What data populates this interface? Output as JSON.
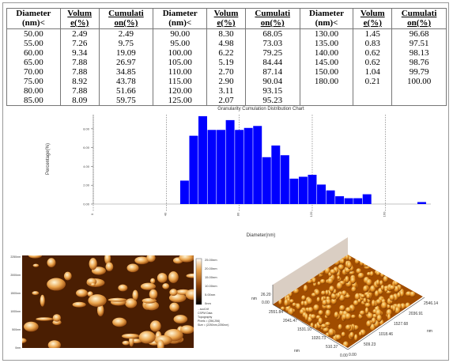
{
  "table": {
    "header": [
      [
        "Diameter",
        "(nm)<"
      ],
      [
        "Volum",
        "e(%)"
      ],
      [
        "Cumulati",
        "on(%)"
      ],
      [
        "Diameter",
        "(nm)<"
      ],
      [
        "Volum",
        "e(%)"
      ],
      [
        "Cumulati",
        "on(%)"
      ],
      [
        "Diameter",
        "(nm)<"
      ],
      [
        "Volum",
        "e(%)"
      ],
      [
        "Cumulati",
        "on(%)"
      ]
    ],
    "rows": [
      [
        "50.00",
        "2.49",
        "2.49",
        "90.00",
        "8.30",
        "68.05",
        "130.00",
        "1.45",
        "96.68"
      ],
      [
        "55.00",
        "7.26",
        "9.75",
        "95.00",
        "4.98",
        "73.03",
        "135.00",
        "0.83",
        "97.51"
      ],
      [
        "60.00",
        "9.34",
        "19.09",
        "100.00",
        "6.22",
        "79.25",
        "140.00",
        "0.62",
        "98.13"
      ],
      [
        "65.00",
        "7.88",
        "26.97",
        "105.00",
        "5.19",
        "84.44",
        "145.00",
        "0.62",
        "98.76"
      ],
      [
        "70.00",
        "7.88",
        "34.85",
        "110.00",
        "2.70",
        "87.14",
        "150.00",
        "1.04",
        "99.79"
      ],
      [
        "75.00",
        "8.92",
        "43.78",
        "115.00",
        "2.90",
        "90.04",
        "180.00",
        "0.21",
        "100.00"
      ],
      [
        "80.00",
        "7.88",
        "51.66",
        "120.00",
        "3.11",
        "93.15"
      ],
      [
        "85.00",
        "8.09",
        "59.75",
        "125.00",
        "2.07",
        "95.23"
      ]
    ]
  },
  "chart_data": {
    "type": "bar",
    "title": "Granularity Cumulation Distribution  Chart",
    "x_label": "Diameter(nm)",
    "y_label": "Percentage(%)",
    "x": [
      50,
      55,
      60,
      65,
      70,
      75,
      80,
      85,
      90,
      95,
      100,
      105,
      110,
      115,
      120,
      125,
      130,
      135,
      140,
      145,
      150,
      180
    ],
    "values": [
      2.49,
      7.26,
      9.34,
      7.88,
      7.88,
      8.92,
      7.88,
      8.09,
      8.3,
      4.98,
      6.22,
      5.19,
      2.7,
      2.9,
      3.11,
      2.07,
      1.45,
      0.83,
      0.62,
      0.62,
      1.04,
      0.21
    ],
    "color": "#0000ff",
    "xlim": [
      0,
      185
    ],
    "xticks": [
      0,
      40,
      80,
      120,
      160
    ],
    "ylim": [
      0,
      9.5
    ],
    "yticks": [
      {
        "value": 0,
        "label": "0.00"
      },
      {
        "value": 2,
        "label": "2.00"
      },
      {
        "value": 4,
        "label": "4.00"
      },
      {
        "value": 6,
        "label": "6.00"
      },
      {
        "value": 8,
        "label": "8.00"
      }
    ],
    "grid": true
  },
  "afm_2d": {
    "colorbar_labels": [
      "25.00nm",
      "20.00nm",
      "15.00nm",
      "10.00nm",
      "5.00nm",
      "0nm"
    ],
    "info": [
      "...sco0.tif",
      "CSPM Data",
      "Topography",
      "Pixels = (256,256)",
      "Size = (2250nm,2250nm)"
    ],
    "y_labels": [
      "2250nm",
      "2000nm",
      "1500nm",
      "1000nm",
      "500nm",
      "0nm"
    ]
  },
  "afm_3d": {
    "z_labels": [
      "26.20",
      "0.00"
    ],
    "z_unit": "nm",
    "y_labels": [
      "2551.84",
      "2041.47",
      "1531.10",
      "1020.73",
      "510.37",
      "0.00"
    ],
    "y_unit": "nm",
    "x_labels": [
      "2546.14",
      "2036.91",
      "1527.68",
      "1018.46",
      "509.23",
      "0.00"
    ],
    "x_unit": "nm"
  }
}
